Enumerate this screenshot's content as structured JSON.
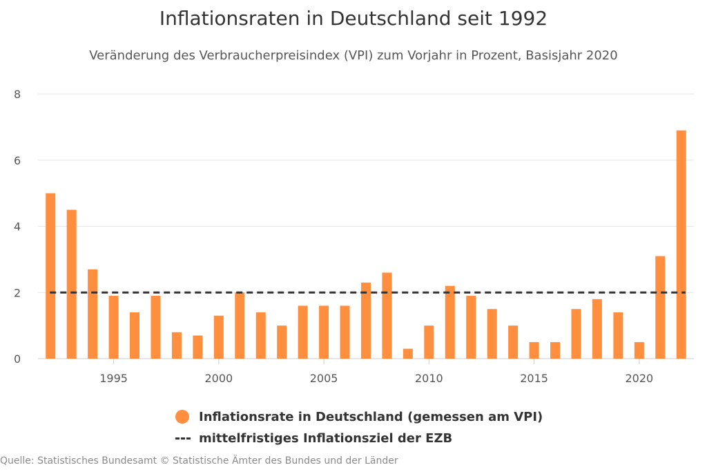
{
  "chart_data": {
    "type": "bar",
    "title": "Inflationsraten in Deutschland seit 1992",
    "subtitle": "Veränderung des Verbraucherpreisindex (VPI) zum Vorjahr in Prozent, Basisjahr 2020",
    "categories": [
      1992,
      1993,
      1994,
      1995,
      1996,
      1997,
      1998,
      1999,
      2000,
      2001,
      2002,
      2003,
      2004,
      2005,
      2006,
      2007,
      2008,
      2009,
      2010,
      2011,
      2012,
      2013,
      2014,
      2015,
      2016,
      2017,
      2018,
      2019,
      2020,
      2021,
      2022
    ],
    "series": [
      {
        "name": "Inflationsrate in Deutschland (gemessen am VPI)",
        "color": "#ff8f3e",
        "values": [
          5.0,
          4.5,
          2.7,
          1.9,
          1.4,
          1.9,
          0.8,
          0.7,
          1.3,
          2.0,
          1.4,
          1.0,
          1.6,
          1.6,
          1.6,
          2.3,
          2.6,
          0.3,
          1.0,
          2.2,
          1.9,
          1.5,
          1.0,
          0.5,
          0.5,
          1.5,
          1.8,
          1.4,
          0.5,
          3.1,
          6.9
        ]
      }
    ],
    "reference_line": {
      "name": "mittelfristiges Inflationsziel der EZB",
      "value": 2,
      "color": "#333333",
      "style": "dashed"
    },
    "xticks": [
      "1995",
      "2000",
      "2005",
      "2010",
      "2015",
      "2020"
    ],
    "yticks": [
      "0",
      "2",
      "4",
      "6",
      "8"
    ],
    "ylim": [
      0,
      8
    ],
    "xlabel": "",
    "ylabel": "",
    "grid": true,
    "legend_position": "bottom"
  },
  "source": "Quelle: Statistisches Bundesamt © Statistische Ämter des Bundes und der Länder"
}
